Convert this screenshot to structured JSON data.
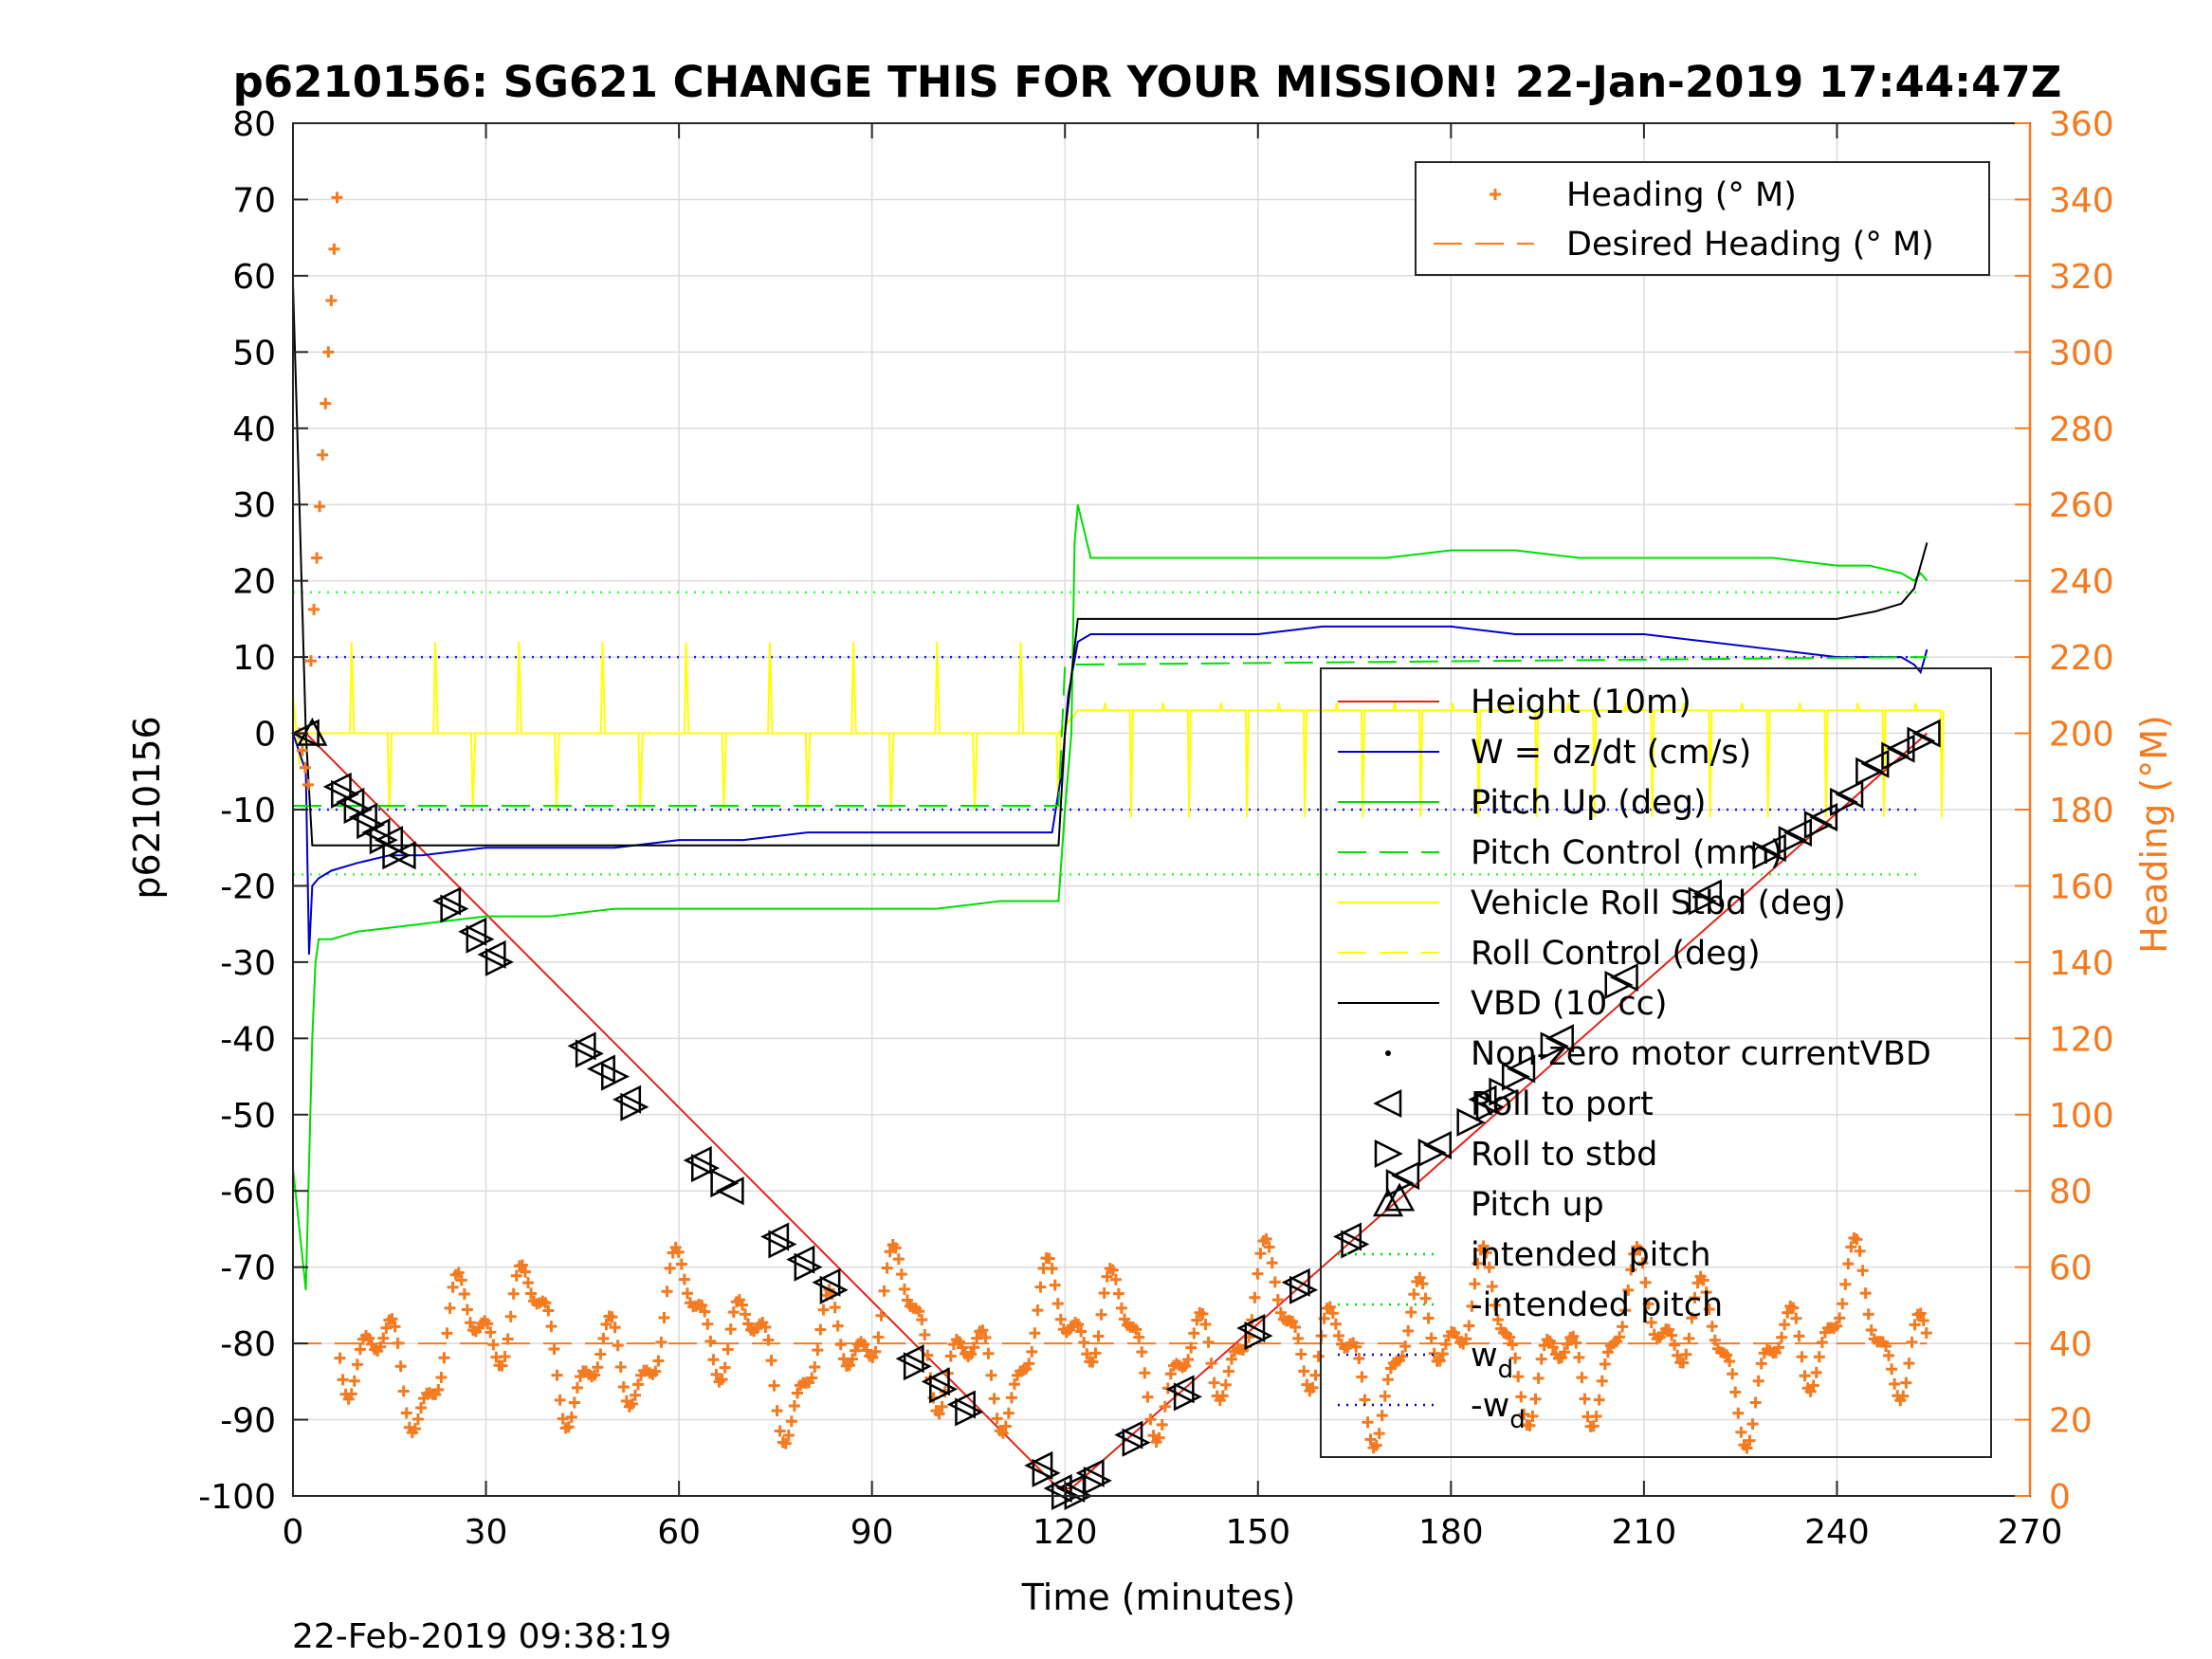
{
  "chart_data": {
    "type": "line",
    "title": "p6210156: SG621 CHANGE THIS FOR YOUR MISSION! 22-Jan-2019 17:44:47Z",
    "xlabel": "Time (minutes)",
    "ylabel": "p6210156",
    "y2label": "Heading (°M)",
    "xlim": [
      0,
      270
    ],
    "ylim": [
      -100,
      80
    ],
    "y2lim": [
      0,
      360
    ],
    "xticks": [
      "0",
      "30",
      "60",
      "90",
      "120",
      "150",
      "180",
      "210",
      "240",
      "270"
    ],
    "yticks": [
      "80",
      "70",
      "60",
      "50",
      "40",
      "30",
      "20",
      "10",
      "0",
      "-10",
      "-20",
      "-30",
      "-40",
      "-50",
      "-60",
      "-70",
      "-80",
      "-90",
      "-100"
    ],
    "y2ticks": [
      "360",
      "340",
      "320",
      "300",
      "280",
      "260",
      "240",
      "220",
      "200",
      "180",
      "160",
      "140",
      "120",
      "100",
      "80",
      "60",
      "40",
      "20",
      "0"
    ],
    "grid": true,
    "timestamp": "22-Feb-2019 09:38:19",
    "legend_heading": {
      "position": "top-right",
      "entries": [
        {
          "label": "Heading (° M)",
          "color": "#f47a20",
          "style": "plus"
        },
        {
          "label": "Desired Heading (° M)",
          "color": "#f47a20",
          "style": "dash"
        }
      ]
    },
    "legend_main": {
      "position": "right",
      "entries": [
        {
          "label": "Height (10m)",
          "color": "#e2231a",
          "style": "line"
        },
        {
          "label": "W = dz/dt (cm/s)",
          "color": "#0000cc",
          "style": "line"
        },
        {
          "label": "Pitch Up (deg)",
          "color": "#00dd00",
          "style": "line"
        },
        {
          "label": "Pitch Control (mm)",
          "color": "#00dd00",
          "style": "dash"
        },
        {
          "label": "Vehicle Roll Stbd (deg)",
          "color": "#ffff00",
          "style": "line"
        },
        {
          "label": "Roll Control (deg)",
          "color": "#ffff00",
          "style": "dash"
        },
        {
          "label": "VBD (10 cc)",
          "color": "#000000",
          "style": "line"
        },
        {
          "label": "Non-zero motor currentVBD",
          "color": "#000000",
          "style": "dot"
        },
        {
          "label": "Roll to port",
          "color": "#000000",
          "style": "tri-left"
        },
        {
          "label": "Roll to stbd",
          "color": "#000000",
          "style": "tri-right"
        },
        {
          "label": "Pitch up",
          "color": "#000000",
          "style": "tri-up"
        },
        {
          "label": "intended pitch",
          "color": "#00dd00",
          "style": "dot-line"
        },
        {
          "label": "-intended pitch",
          "color": "#00dd00",
          "style": "dot-line"
        },
        {
          "label": "w",
          "sub": "d",
          "color": "#0000cc",
          "style": "dot-line"
        },
        {
          "label": "-w",
          "sub": "d",
          "color": "#0000cc",
          "style": "dot-line"
        }
      ]
    },
    "constants": {
      "intended_pitch": 18.5,
      "w_d": 10,
      "desired_heading": 40
    },
    "series": [
      {
        "name": "Height (10m)",
        "color": "#e2231a",
        "x": [
          0,
          2,
          119,
          121,
          254
        ],
        "y": [
          0,
          0,
          -99,
          -99,
          0
        ]
      },
      {
        "name": "W = dz/dt (cm/s)",
        "color": "#0000cc",
        "x": [
          0,
          2,
          2.5,
          3,
          4,
          6,
          10,
          15,
          20,
          30,
          40,
          50,
          60,
          70,
          80,
          90,
          100,
          110,
          118,
          119.5,
          120.5,
          122,
          124,
          130,
          140,
          150,
          160,
          170,
          180,
          190,
          200,
          210,
          220,
          230,
          240,
          245,
          250,
          252,
          253,
          254
        ],
        "y": [
          0,
          -5,
          -29,
          -20,
          -19,
          -18,
          -17,
          -16,
          -16,
          -15,
          -15,
          -15,
          -14,
          -14,
          -13,
          -13,
          -13,
          -13,
          -13,
          -5,
          5,
          12,
          13,
          13,
          13,
          13,
          14,
          14,
          14,
          13,
          13,
          13,
          12,
          11,
          10,
          10,
          10,
          9,
          8,
          11
        ]
      },
      {
        "name": "Pitch Up (deg)",
        "color": "#00dd00",
        "x": [
          0,
          1,
          2,
          3,
          3.5,
          4,
          6,
          10,
          20,
          30,
          40,
          50,
          60,
          70,
          80,
          90,
          100,
          110,
          119,
          120,
          121,
          121.5,
          122,
          124,
          130,
          140,
          150,
          160,
          170,
          180,
          190,
          200,
          210,
          220,
          230,
          240,
          245,
          250,
          252,
          253,
          254
        ],
        "y": [
          -57,
          -65,
          -73,
          -40,
          -30,
          -27,
          -27,
          -26,
          -25,
          -24,
          -24,
          -23,
          -23,
          -23,
          -23,
          -23,
          -23,
          -22,
          -22,
          -10,
          0,
          25,
          30,
          23,
          23,
          23,
          23,
          23,
          23,
          24,
          24,
          23,
          23,
          23,
          23,
          22,
          22,
          21,
          20,
          21,
          20
        ]
      },
      {
        "name": "Pitch Control (mm)",
        "color": "#00dd00",
        "dash": true,
        "x": [
          0,
          119,
          120,
          254
        ],
        "y": [
          -9.5,
          -9.5,
          9,
          10
        ]
      },
      {
        "name": "VBD (10 cc)",
        "color": "#000000",
        "x": [
          0,
          1,
          2,
          3,
          119,
          120,
          122,
          200,
          240,
          246,
          250,
          252,
          253,
          254
        ],
        "y": [
          59,
          30,
          0,
          -14.7,
          -14.7,
          0,
          15,
          15,
          15,
          16,
          17,
          19,
          22,
          25
        ]
      }
    ],
    "markers": {
      "roll_to_port": {
        "x": [
          2,
          7,
          9,
          11,
          13,
          15,
          17,
          24,
          28,
          31,
          45,
          48,
          52,
          63,
          68,
          75,
          79,
          83,
          96,
          100,
          104,
          116,
          119,
          121,
          124,
          130,
          138,
          149,
          156,
          164,
          173,
          178,
          185,
          191,
          197,
          207,
          220,
          230,
          234,
          238,
          242,
          246,
          250,
          254
        ],
        "y": [
          0,
          -7,
          -9,
          -11,
          -13,
          -14,
          -16,
          -22,
          -26,
          -29,
          -41,
          -44,
          -48,
          -56,
          -60,
          -66,
          -69,
          -72,
          -82,
          -85,
          -88,
          -96,
          -99,
          -99,
          -97,
          -92,
          -86,
          -78,
          -72,
          -66,
          -58,
          -54,
          -48,
          -44,
          -40,
          -32,
          -21,
          -15,
          -13,
          -11,
          -8,
          -4,
          -2,
          0
        ]
      },
      "roll_to_stbd": {
        "x": [
          8,
          10,
          12,
          14,
          16,
          25,
          29,
          32,
          46,
          50,
          53,
          64,
          67,
          76,
          80,
          84,
          97,
          101,
          105,
          117,
          120,
          122,
          125,
          131,
          139,
          150,
          157,
          165,
          172,
          177,
          183,
          186,
          188,
          190,
          196,
          206,
          219,
          229,
          233,
          237,
          241,
          245,
          249,
          253
        ],
        "y": [
          -8,
          -10,
          -12,
          -14,
          -16,
          -23,
          -27,
          -30,
          -42,
          -45,
          -49,
          -57,
          -59,
          -67,
          -70,
          -73,
          -83,
          -86,
          -89,
          -97,
          -100,
          -100,
          -98,
          -93,
          -87,
          -79,
          -73,
          -67,
          -59,
          -55,
          -51,
          -49,
          -47,
          -45,
          -41,
          -33,
          -22,
          -16,
          -14,
          -12,
          -9,
          -5,
          -3,
          -1
        ]
      },
      "pitch_up": {
        "x": [
          3,
          172
        ],
        "y": [
          0,
          -61
        ]
      }
    }
  }
}
